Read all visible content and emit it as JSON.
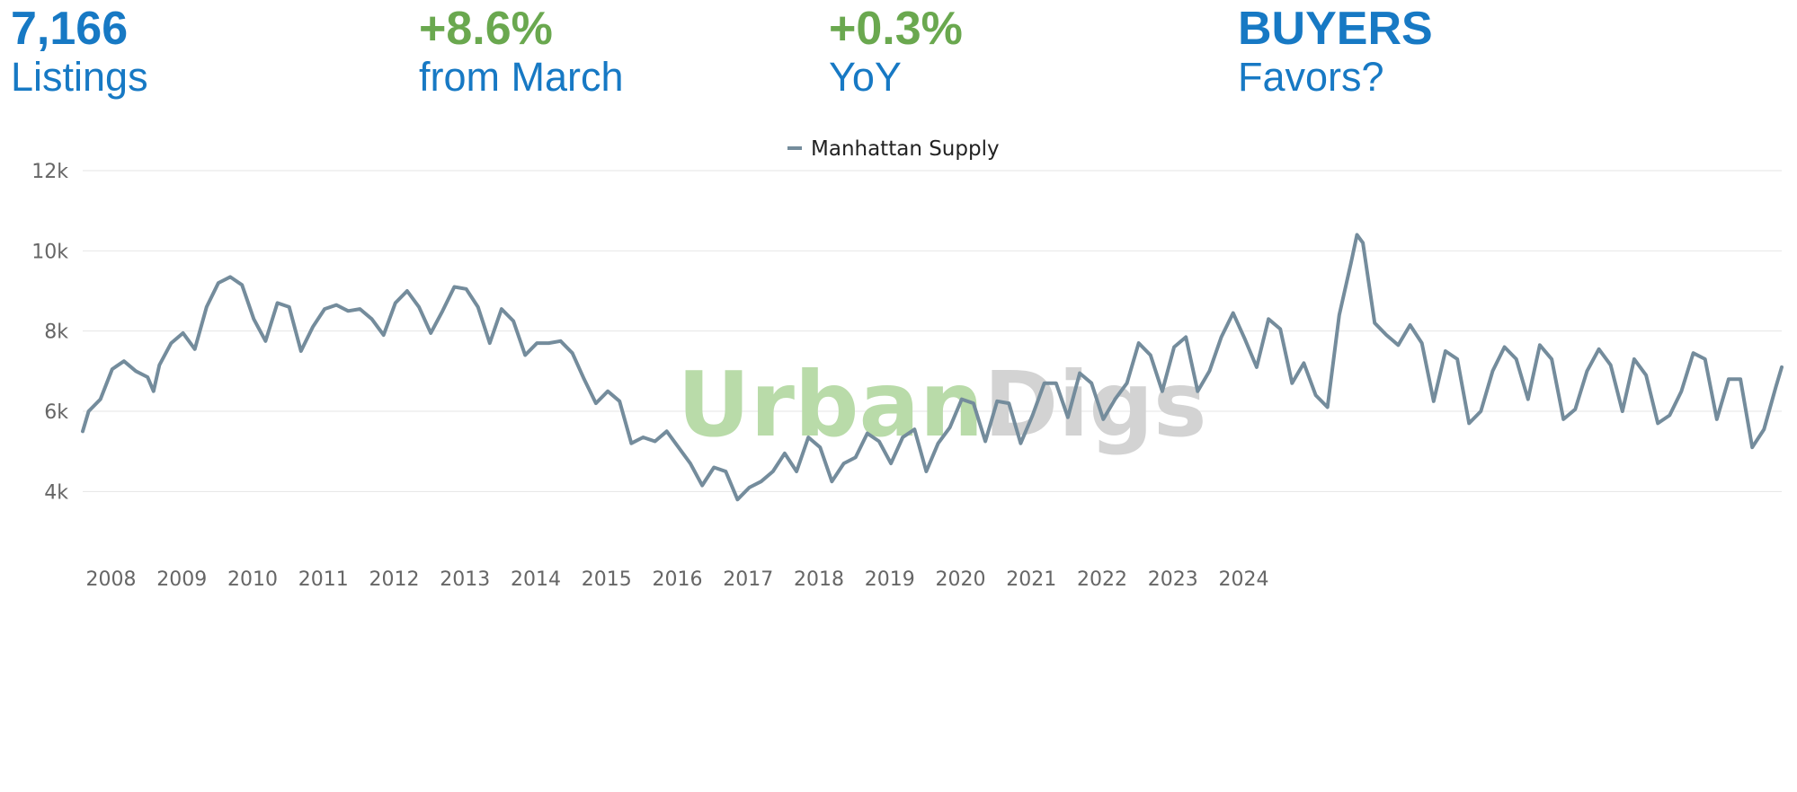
{
  "stats": [
    {
      "value": "7,166",
      "label": "Listings",
      "color": "#1779c4"
    },
    {
      "value": "+8.6%",
      "label": "from March",
      "color": "#6aa84f"
    },
    {
      "value": "+0.3%",
      "label": "YoY",
      "color": "#6aa84f"
    },
    {
      "value": "BUYERS",
      "label": "Favors?",
      "color": "#1779c4"
    }
  ],
  "watermark": {
    "part1": "Urban",
    "part2": "Digs",
    "color1": "#b9dba9",
    "color2": "#d3d3d3"
  },
  "chart_data": {
    "type": "line",
    "series": [
      {
        "name": "Manhattan Supply",
        "color": "#748c9c",
        "points": [
          [
            "2007-07",
            5500
          ],
          [
            "2007-08",
            6000
          ],
          [
            "2007-10",
            6300
          ],
          [
            "2007-12",
            7050
          ],
          [
            "2008-02",
            7250
          ],
          [
            "2008-04",
            7000
          ],
          [
            "2008-06",
            6850
          ],
          [
            "2008-07",
            6500
          ],
          [
            "2008-08",
            7150
          ],
          [
            "2008-10",
            7700
          ],
          [
            "2008-12",
            7950
          ],
          [
            "2009-02",
            7550
          ],
          [
            "2009-04",
            8600
          ],
          [
            "2009-06",
            9200
          ],
          [
            "2009-08",
            9350
          ],
          [
            "2009-10",
            9150
          ],
          [
            "2009-12",
            8300
          ],
          [
            "2010-02",
            7750
          ],
          [
            "2010-04",
            8700
          ],
          [
            "2010-06",
            8600
          ],
          [
            "2010-08",
            7500
          ],
          [
            "2010-10",
            8100
          ],
          [
            "2010-12",
            8550
          ],
          [
            "2011-02",
            8650
          ],
          [
            "2011-04",
            8500
          ],
          [
            "2011-06",
            8550
          ],
          [
            "2011-08",
            8300
          ],
          [
            "2011-10",
            7900
          ],
          [
            "2011-12",
            8700
          ],
          [
            "2012-02",
            9000
          ],
          [
            "2012-04",
            8600
          ],
          [
            "2012-06",
            7950
          ],
          [
            "2012-08",
            8500
          ],
          [
            "2012-10",
            9100
          ],
          [
            "2012-12",
            9050
          ],
          [
            "2013-02",
            8600
          ],
          [
            "2013-04",
            7700
          ],
          [
            "2013-06",
            8550
          ],
          [
            "2013-08",
            8250
          ],
          [
            "2013-10",
            7400
          ],
          [
            "2013-12",
            7700
          ],
          [
            "2014-02",
            7700
          ],
          [
            "2014-04",
            7750
          ],
          [
            "2014-06",
            7450
          ],
          [
            "2014-08",
            6800
          ],
          [
            "2014-10",
            6200
          ],
          [
            "2014-12",
            6500
          ],
          [
            "2015-02",
            6250
          ],
          [
            "2015-04",
            5200
          ],
          [
            "2015-06",
            5350
          ],
          [
            "2015-08",
            5250
          ],
          [
            "2015-10",
            5500
          ],
          [
            "2015-12",
            5100
          ],
          [
            "2016-02",
            4700
          ],
          [
            "2016-04",
            4150
          ],
          [
            "2016-06",
            4600
          ],
          [
            "2016-08",
            4500
          ],
          [
            "2016-10",
            3800
          ],
          [
            "2016-12",
            4100
          ],
          [
            "2017-02",
            4250
          ],
          [
            "2017-04",
            4500
          ],
          [
            "2017-06",
            4950
          ],
          [
            "2017-08",
            4500
          ],
          [
            "2017-10",
            5350
          ],
          [
            "2017-12",
            5100
          ],
          [
            "2018-02",
            4250
          ],
          [
            "2018-04",
            4700
          ],
          [
            "2018-06",
            4850
          ],
          [
            "2018-08",
            5450
          ],
          [
            "2018-10",
            5250
          ],
          [
            "2018-12",
            4700
          ],
          [
            "2019-02",
            5350
          ],
          [
            "2019-04",
            5550
          ],
          [
            "2019-06",
            4500
          ],
          [
            "2019-08",
            5200
          ],
          [
            "2019-10",
            5600
          ],
          [
            "2019-12",
            6300
          ],
          [
            "2020-02",
            6200
          ],
          [
            "2020-04",
            5250
          ],
          [
            "2020-06",
            6250
          ],
          [
            "2020-08",
            6200
          ],
          [
            "2020-10",
            5200
          ],
          [
            "2020-12",
            5900
          ],
          [
            "2021-02",
            6700
          ],
          [
            "2021-04",
            6700
          ],
          [
            "2021-06",
            5850
          ],
          [
            "2021-08",
            6950
          ],
          [
            "2021-10",
            6700
          ],
          [
            "2021-12",
            5800
          ],
          [
            "2022-02",
            6300
          ],
          [
            "2022-04",
            6700
          ],
          [
            "2022-06",
            7700
          ],
          [
            "2022-08",
            7400
          ],
          [
            "2022-10",
            6500
          ],
          [
            "2022-12",
            7600
          ],
          [
            "2023-02",
            7850
          ],
          [
            "2023-04",
            6500
          ],
          [
            "2023-06",
            7000
          ],
          [
            "2023-08",
            7850
          ],
          [
            "2023-10",
            8450
          ],
          [
            "2023-12",
            7800
          ],
          [
            "2024-02",
            7100
          ],
          [
            "2024-04",
            8300
          ],
          [
            "2024-06",
            8050
          ],
          [
            "2024-08",
            6700
          ],
          [
            "2024-10",
            7200
          ],
          [
            "2024-12",
            6400
          ],
          [
            "2025-02",
            6100
          ],
          [
            "2025-04",
            8400
          ],
          [
            "2025-06",
            9700
          ],
          [
            "2025-07",
            10400
          ],
          [
            "2025-08",
            10200
          ],
          [
            "2025-10",
            8200
          ],
          [
            "2025-12",
            7900
          ],
          [
            "2026-02",
            7650
          ],
          [
            "2026-04",
            8150
          ],
          [
            "2026-06",
            7700
          ],
          [
            "2026-08",
            6250
          ],
          [
            "2026-10",
            7500
          ],
          [
            "2026-12",
            7300
          ],
          [
            "2027-02",
            5700
          ],
          [
            "2027-04",
            6000
          ],
          [
            "2027-06",
            7000
          ],
          [
            "2027-08",
            7600
          ],
          [
            "2027-10",
            7300
          ],
          [
            "2027-12",
            6300
          ],
          [
            "2028-02",
            7650
          ],
          [
            "2028-04",
            7300
          ],
          [
            "2028-06",
            5800
          ],
          [
            "2028-08",
            6050
          ],
          [
            "2028-10",
            7000
          ],
          [
            "2028-12",
            7550
          ],
          [
            "2029-02",
            7150
          ],
          [
            "2029-04",
            6000
          ],
          [
            "2029-06",
            7300
          ],
          [
            "2029-08",
            6900
          ],
          [
            "2029-10",
            5700
          ],
          [
            "2029-12",
            5900
          ],
          [
            "2030-02",
            6500
          ],
          [
            "2030-04",
            7450
          ],
          [
            "2030-06",
            7300
          ],
          [
            "2030-08",
            5800
          ],
          [
            "2030-10",
            6800
          ],
          [
            "2030-12",
            6800
          ],
          [
            "2031-02",
            5100
          ],
          [
            "2031-04",
            5550
          ],
          [
            "2031-06",
            6600
          ],
          [
            "2031-07",
            7100
          ]
        ]
      }
    ],
    "x_tick_labels": [
      "2008",
      "2009",
      "2010",
      "2011",
      "2012",
      "2013",
      "2014",
      "2015",
      "2016",
      "2017",
      "2018",
      "2019",
      "2020",
      "2021",
      "2022",
      "2023",
      "2024"
    ],
    "y_ticks": [
      4000,
      6000,
      8000,
      10000,
      12000
    ],
    "y_tick_labels": [
      "4k",
      "6k",
      "8k",
      "10k",
      "12k"
    ],
    "ylim": [
      3000,
      12000
    ],
    "grid": true,
    "legend": {
      "position": "top-center",
      "entries": [
        "Manhattan Supply"
      ]
    }
  }
}
